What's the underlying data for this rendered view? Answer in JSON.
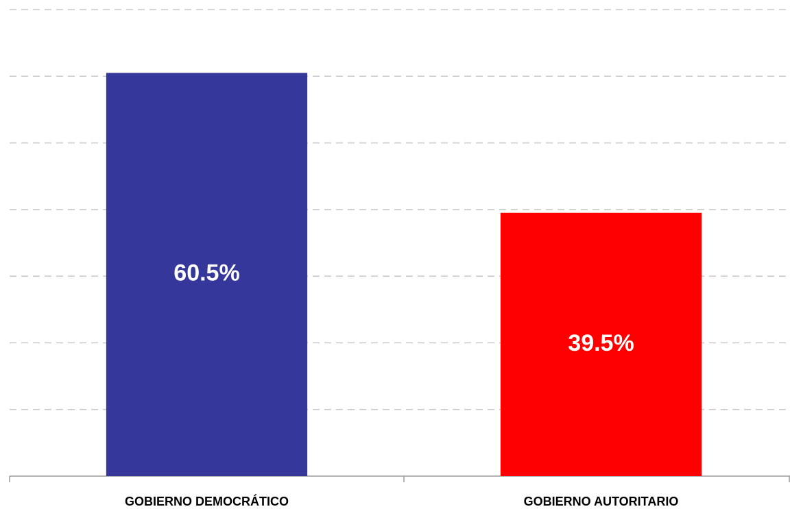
{
  "chart_data": {
    "type": "bar",
    "categories": [
      "GOBIERNO DEMOCRÁTICO",
      "GOBIERNO AUTORITARIO"
    ],
    "values": [
      60.5,
      39.5
    ],
    "value_labels": [
      "60.5%",
      "39.5%"
    ],
    "colors": [
      "#35379b",
      "#ff0000"
    ],
    "ylim": [
      0,
      70
    ],
    "yticks": [
      0,
      10,
      20,
      30,
      40,
      50,
      60,
      70
    ],
    "grid": true
  }
}
